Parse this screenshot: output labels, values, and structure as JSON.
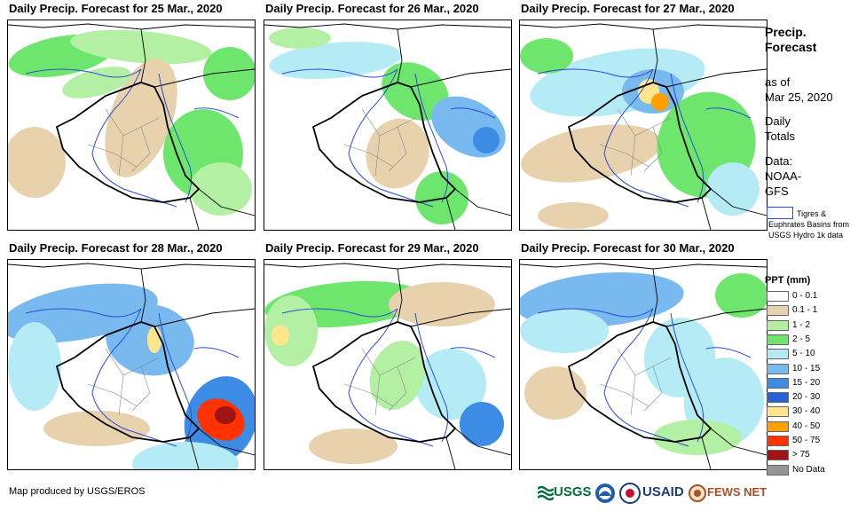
{
  "panels": [
    {
      "title": "Daily Precip. Forecast for 25 Mar., 2020",
      "date": "25 Mar., 2020"
    },
    {
      "title": "Daily Precip. Forecast for 26 Mar., 2020",
      "date": "26 Mar., 2020"
    },
    {
      "title": "Daily Precip. Forecast for 27 Mar., 2020",
      "date": "27 Mar., 2020"
    },
    {
      "title": "Daily Precip. Forecast for 28 Mar., 2020",
      "date": "28 Mar., 2020"
    },
    {
      "title": "Daily Precip. Forecast for 29 Mar., 2020",
      "date": "29 Mar., 2020"
    },
    {
      "title": "Daily Precip. Forecast for 30 Mar., 2020",
      "date": "30 Mar., 2020"
    }
  ],
  "legend": {
    "title": "Precip.\nForecast",
    "as_of": "as of\nMar 25, 2020",
    "daily": "Daily\nTotals",
    "source": "Data:\nNOAA-\nGFS",
    "basin_note": "Tigres & Euphrates Basins from USGS Hydro 1k data",
    "basin_color": "#2a4bd7",
    "ppt_title": "PPT (mm)",
    "classes": [
      {
        "label": "0 - 0.1",
        "color": "#ffffff"
      },
      {
        "label": "0.1 - 1",
        "color": "#e8d2ae"
      },
      {
        "label": "1 - 2",
        "color": "#b4f0a4"
      },
      {
        "label": "2 - 5",
        "color": "#6ee66e"
      },
      {
        "label": "5 - 10",
        "color": "#b4ebf5"
      },
      {
        "label": "10 - 15",
        "color": "#78b9f0"
      },
      {
        "label": "15 - 20",
        "color": "#3c8ce6"
      },
      {
        "label": "20 - 30",
        "color": "#2860d8"
      },
      {
        "label": "30 - 40",
        "color": "#ffe68c"
      },
      {
        "label": "40 - 50",
        "color": "#ffa000"
      },
      {
        "label": "50 - 75",
        "color": "#ff3200"
      },
      {
        "label": "> 75",
        "color": "#a01414"
      },
      {
        "label": "No Data",
        "color": "#969696"
      }
    ]
  },
  "credit": "Map produced by USGS/EROS",
  "logos": [
    {
      "name": "usgs-logo",
      "text": "USGS"
    },
    {
      "name": "noaa-logo",
      "text": "NOAA"
    },
    {
      "name": "usaid-logo",
      "text": "USAID"
    },
    {
      "name": "fewsnet-logo",
      "text": "FEWS NET"
    }
  ]
}
